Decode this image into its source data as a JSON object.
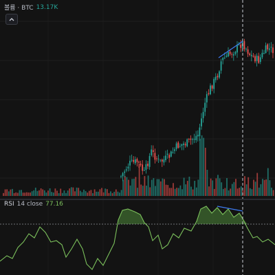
{
  "volume_legend": {
    "title": "볼륨 · BTC",
    "value": "13.17K",
    "collapse_icon": "chevron-up-icon"
  },
  "rsi_legend": {
    "title": "RSI",
    "params": "14 close",
    "value": "77.16"
  },
  "colors": {
    "background": "#131313",
    "up": "#26a69a",
    "down": "#ef5350",
    "volume_up": "#1f6e67",
    "volume_down": "#9c3b39",
    "rsi_line": "#7cc15c",
    "rsi_fill": "#3f6b30",
    "trendline": "#3e7bf0",
    "crosshair": "#c9ccd4"
  }
}
